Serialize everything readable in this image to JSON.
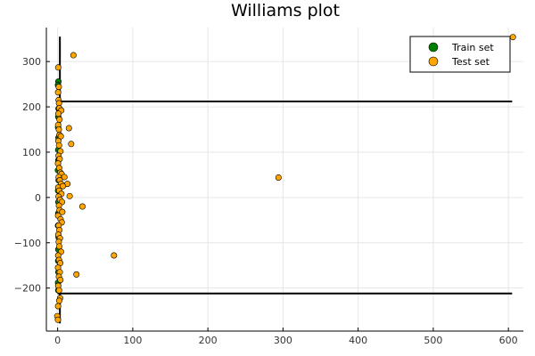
{
  "chart_data": {
    "type": "scatter",
    "title": "Williams plot",
    "xlabel": "",
    "ylabel": "",
    "xlim": [
      -15,
      620
    ],
    "ylim": [
      -295,
      375
    ],
    "x_ticks": [
      0,
      100,
      200,
      300,
      400,
      500,
      600
    ],
    "y_ticks": [
      -200,
      -100,
      0,
      100,
      200,
      300
    ],
    "grid": true,
    "legend_position": "top-right",
    "thresholds": {
      "upper": 212,
      "lower": -212,
      "vertical": 3,
      "vertical_range": [
        -278,
        355
      ],
      "x_range": [
        0,
        605
      ]
    },
    "series": [
      {
        "name": "Train set",
        "color": "#008000",
        "points": [
          [
            1.0,
            256
          ],
          [
            0.5,
            248
          ],
          [
            1.2,
            196
          ],
          [
            0.8,
            178
          ],
          [
            0.6,
            155
          ],
          [
            1.1,
            132
          ],
          [
            0.7,
            105
          ],
          [
            0.9,
            82
          ],
          [
            0.4,
            60
          ],
          [
            1.3,
            38
          ],
          [
            0.6,
            15
          ],
          [
            1.0,
            -10
          ],
          [
            0.8,
            -35
          ],
          [
            0.5,
            -62
          ],
          [
            1.2,
            -88
          ],
          [
            0.9,
            -115
          ],
          [
            0.7,
            -140
          ],
          [
            1.0,
            -165
          ],
          [
            0.6,
            -188
          ],
          [
            0.8,
            -205
          ]
        ]
      },
      {
        "name": "Test set",
        "color": "#FFA500",
        "points": [
          [
            0.8,
            287
          ],
          [
            1.5,
            244
          ],
          [
            0.6,
            232
          ],
          [
            1.2,
            215
          ],
          [
            1.8,
            208
          ],
          [
            2.2,
            197
          ],
          [
            4.8,
            192
          ],
          [
            1.0,
            185
          ],
          [
            2.5,
            172
          ],
          [
            0.7,
            160
          ],
          [
            1.6,
            150
          ],
          [
            2.4,
            138
          ],
          [
            4.2,
            135
          ],
          [
            0.9,
            125
          ],
          [
            1.9,
            115
          ],
          [
            3.8,
            102
          ],
          [
            1.2,
            92
          ],
          [
            2.7,
            85
          ],
          [
            0.5,
            75
          ],
          [
            2.1,
            65
          ],
          [
            3.5,
            55
          ],
          [
            5.2,
            52
          ],
          [
            1.4,
            45
          ],
          [
            2.8,
            38
          ],
          [
            4.5,
            30
          ],
          [
            0.8,
            22
          ],
          [
            2.0,
            15
          ],
          [
            5.0,
            8
          ],
          [
            1.1,
            2
          ],
          [
            3.2,
            -5
          ],
          [
            5.8,
            -10
          ],
          [
            1.7,
            -18
          ],
          [
            2.6,
            -28
          ],
          [
            6.2,
            -32
          ],
          [
            0.6,
            -40
          ],
          [
            3.9,
            -48
          ],
          [
            5.5,
            -55
          ],
          [
            1.3,
            -62
          ],
          [
            2.3,
            -72
          ],
          [
            0.9,
            -82
          ],
          [
            3.1,
            -90
          ],
          [
            1.5,
            -98
          ],
          [
            2.2,
            -108
          ],
          [
            4.6,
            -120
          ],
          [
            0.7,
            -128
          ],
          [
            1.8,
            -138
          ],
          [
            3.4,
            -145
          ],
          [
            0.5,
            -155
          ],
          [
            2.9,
            -165
          ],
          [
            1.6,
            -175
          ],
          [
            3.7,
            -182
          ],
          [
            0.8,
            -195
          ],
          [
            1.9,
            -205
          ],
          [
            3.3,
            -222
          ],
          [
            2.1,
            -228
          ],
          [
            0.6,
            -240
          ],
          [
            -0.5,
            -262
          ],
          [
            0.4,
            -270
          ],
          [
            21,
            314
          ],
          [
            15,
            153
          ],
          [
            18,
            118
          ],
          [
            13,
            30
          ],
          [
            9,
            45
          ],
          [
            16,
            3
          ],
          [
            7,
            25
          ],
          [
            33,
            -20
          ],
          [
            25,
            -170
          ],
          [
            75,
            -128
          ],
          [
            294,
            44
          ],
          [
            606,
            354
          ]
        ]
      }
    ]
  }
}
